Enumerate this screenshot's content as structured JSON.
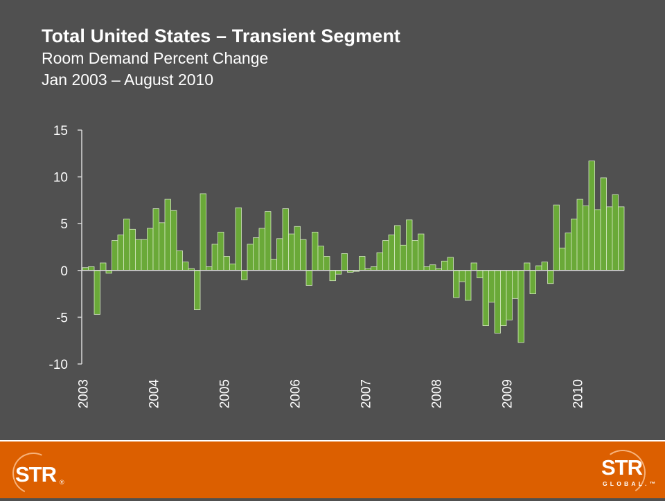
{
  "title": {
    "main": "Total United States – Transient Segment",
    "line2": "Room Demand Percent Change",
    "line3": "Jan 2003 – August 2010"
  },
  "footer": {
    "left_logo": "STR",
    "left_logo_mark": "®",
    "right_logo": "STR",
    "right_logo_sub": "GLOBAL.™"
  },
  "colors": {
    "background": "#505050",
    "bar_fill": "#6aa938",
    "bar_stroke": "#d6e9c3",
    "footer": "#dc5f00"
  },
  "chart_data": {
    "type": "bar",
    "start": "2003-01",
    "end": "2010-08",
    "ylim": [
      -10,
      15
    ],
    "yticks": [
      15,
      10,
      5,
      0,
      -5,
      -10
    ],
    "year_labels": [
      "2003",
      "2004",
      "2005",
      "2006",
      "2007",
      "2008",
      "2009",
      "2010"
    ],
    "values": [
      0.3,
      0.4,
      -4.7,
      0.8,
      -0.3,
      3.2,
      3.8,
      5.5,
      4.4,
      3.3,
      3.3,
      4.5,
      6.6,
      5.1,
      7.6,
      6.4,
      2.1,
      0.9,
      0.2,
      -4.2,
      8.2,
      0.4,
      2.8,
      4.1,
      1.5,
      0.7,
      6.7,
      -1.0,
      2.8,
      3.5,
      4.5,
      6.3,
      1.2,
      3.4,
      6.6,
      3.9,
      4.7,
      3.3,
      -1.6,
      4.1,
      2.6,
      1.5,
      -1.1,
      -0.4,
      1.8,
      -0.2,
      -0.1,
      1.5,
      0.2,
      0.4,
      1.9,
      3.2,
      3.8,
      4.8,
      2.7,
      5.4,
      3.2,
      3.9,
      0.4,
      0.6,
      0.2,
      1.0,
      1.4,
      -2.9,
      -1.2,
      -3.2,
      0.8,
      -0.8,
      -5.9,
      -3.4,
      -6.7,
      -5.9,
      -5.3,
      -3.0,
      -7.7,
      0.8,
      -2.5,
      0.5,
      0.9,
      -1.4,
      7.0,
      2.4,
      4.0,
      5.5,
      7.6,
      6.9,
      11.7,
      6.5,
      9.9,
      6.8,
      8.1,
      6.8
    ]
  }
}
